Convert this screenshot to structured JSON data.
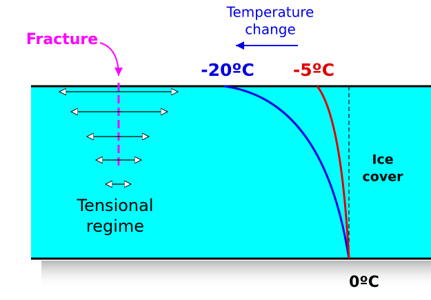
{
  "temperature_change": [
    "Temperature",
    "change"
  ],
  "fracture": "Fracture",
  "cold_temperature": "-20ºC",
  "warm_temperature": "-5ºC",
  "regime": [
    "Tensional",
    "regime"
  ],
  "ice_cover": [
    "Ice",
    "cover"
  ],
  "base_temperature": "0ºC"
}
